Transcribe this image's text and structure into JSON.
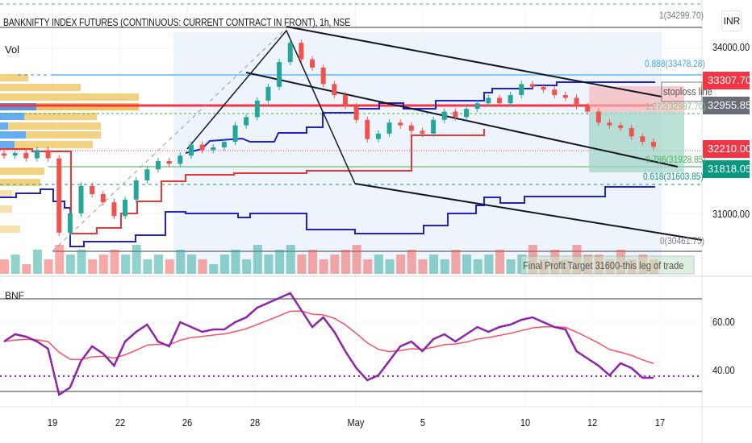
{
  "header": {
    "title": "BANKNIFTY INDEX FUTURES (CONTINUOUS: CURRENT CONTRACT IN FRONT), 1h, NSE",
    "vol_label": "Vol",
    "indicator_label": "BNF",
    "currency_button": "INR"
  },
  "price_axis": {
    "ticks": [
      "34000.00",
      "31000.00"
    ],
    "tags": [
      {
        "text": "33307.70",
        "color": "#f23645"
      },
      {
        "text": "32955.85",
        "color": "#6a6d78"
      },
      {
        "text": "32210.00",
        "color": "#f23645"
      },
      {
        "text": "31818.05",
        "color": "#089981"
      }
    ]
  },
  "rsi_axis": {
    "ticks": [
      "60.00",
      "40.00"
    ]
  },
  "fib_labels": {
    "f1": "1(34299.70)",
    "f888": "0.888(33478.28)",
    "f1272": "1.272(32987.70)",
    "f786": "0.786(31928.85)",
    "f618": "0.618(31603.85)",
    "f0": "0(30461.75)"
  },
  "annotations": {
    "stoploss": "stoploss line",
    "target": "Final Profit Target 31600-this leg of trade"
  },
  "colors": {
    "up": "#26a69a",
    "down": "#ef5350",
    "rsi": "#8e24aa",
    "rsi_ma": "#f7525f"
  },
  "chart_data": {
    "type": "candlestick",
    "title": "BANKNIFTY INDEX FUTURES (CONTINUOUS: CURRENT CONTRACT IN FRONT), 1h, NSE",
    "x_ticks": [
      "19",
      "22",
      "26",
      "28",
      "May",
      "5",
      "10",
      "12",
      "17"
    ],
    "ylim": [
      30200,
      34700
    ],
    "closes": [
      32050,
      32100,
      32000,
      32150,
      32000,
      30650,
      31000,
      31500,
      31350,
      31200,
      30950,
      31250,
      31600,
      31800,
      31950,
      31900,
      32050,
      32250,
      32150,
      32200,
      32300,
      32600,
      32750,
      33050,
      33300,
      33750,
      34100,
      33800,
      33650,
      33350,
      33150,
      32950,
      32700,
      32350,
      32450,
      32650,
      32600,
      32500,
      32450,
      32700,
      32850,
      32750,
      32900,
      33000,
      33100,
      33000,
      33150,
      33350,
      33300,
      33250,
      33150,
      33100,
      32950,
      32850,
      32650,
      32600,
      32550,
      32400,
      32300,
      32210
    ],
    "volumes": [
      3,
      4,
      2,
      5,
      3,
      6,
      4,
      5,
      3,
      4,
      5,
      4,
      6,
      3,
      4,
      3,
      5,
      4,
      3,
      2,
      4,
      5,
      3,
      6,
      4,
      5,
      6,
      4,
      5,
      3,
      4,
      5,
      6,
      3,
      4,
      3,
      4,
      5,
      3,
      4,
      3,
      5,
      4,
      3,
      4,
      5,
      3,
      4,
      6,
      3,
      5,
      3,
      6,
      4,
      4,
      3,
      5,
      3,
      4,
      3
    ],
    "rsi": {
      "name": "BNF",
      "ylim": [
        25,
        78
      ],
      "levels": [
        70,
        37,
        30
      ],
      "values": [
        52,
        55,
        54,
        52,
        49,
        30,
        33,
        44,
        50,
        47,
        42,
        52,
        56,
        59,
        52,
        50,
        60,
        58,
        56,
        57,
        57,
        60,
        62,
        66,
        68,
        70,
        72,
        65,
        58,
        62,
        56,
        48,
        41,
        36,
        38,
        44,
        50,
        52,
        48,
        53,
        55,
        52,
        55,
        58,
        56,
        58,
        59,
        61,
        62,
        60,
        58,
        57,
        48,
        45,
        42,
        38,
        43,
        41,
        37,
        37
      ]
    }
  }
}
